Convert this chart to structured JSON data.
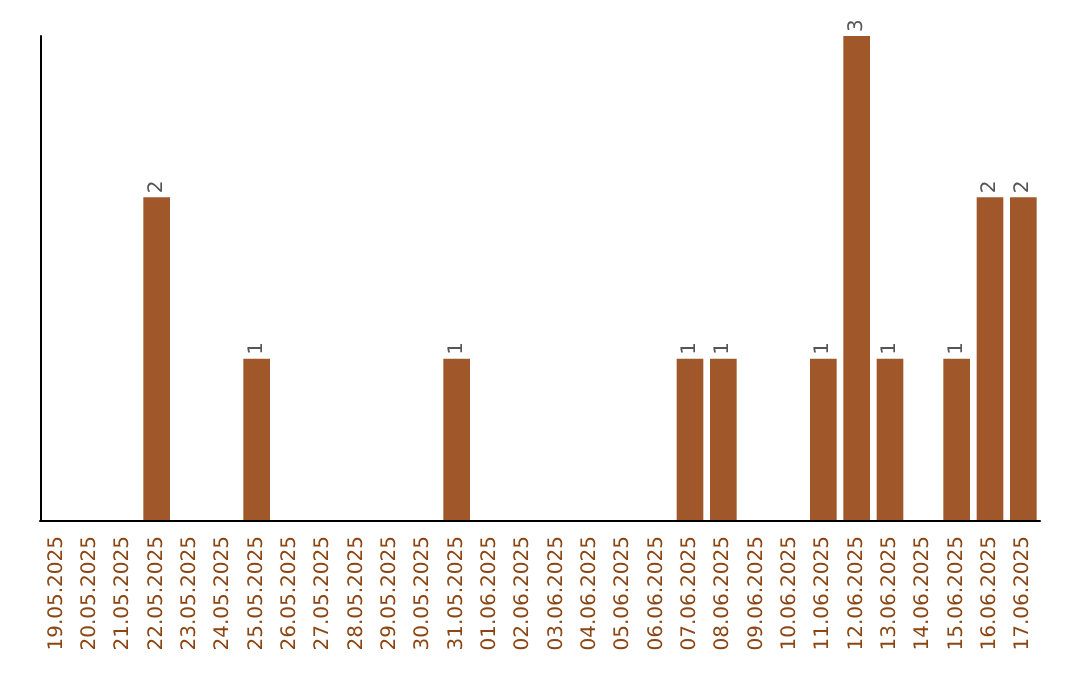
{
  "chart_data": {
    "type": "bar",
    "categories": [
      "19.05.2025",
      "20.05.2025",
      "21.05.2025",
      "22.05.2025",
      "23.05.2025",
      "24.05.2025",
      "25.05.2025",
      "26.05.2025",
      "27.05.2025",
      "28.05.2025",
      "29.05.2025",
      "30.05.2025",
      "31.05.2025",
      "01.06.2025",
      "02.06.2025",
      "03.06.2025",
      "04.06.2025",
      "05.06.2025",
      "06.06.2025",
      "07.06.2025",
      "08.06.2025",
      "09.06.2025",
      "10.06.2025",
      "11.06.2025",
      "12.06.2025",
      "13.06.2025",
      "14.06.2025",
      "15.06.2025",
      "16.06.2025",
      "17.06.2025"
    ],
    "values": [
      0,
      0,
      0,
      2,
      0,
      0,
      1,
      0,
      0,
      0,
      0,
      0,
      1,
      0,
      0,
      0,
      0,
      0,
      0,
      1,
      1,
      0,
      0,
      1,
      3,
      1,
      0,
      1,
      2,
      2
    ],
    "value_labels": [
      null,
      null,
      null,
      "2",
      null,
      null,
      "1",
      null,
      null,
      null,
      null,
      null,
      "1",
      null,
      null,
      null,
      null,
      null,
      null,
      "1",
      "1",
      null,
      null,
      "1",
      "3",
      "1",
      null,
      "1",
      "2",
      "2"
    ],
    "color": "#a0582a",
    "tick_labels": "x"
  }
}
